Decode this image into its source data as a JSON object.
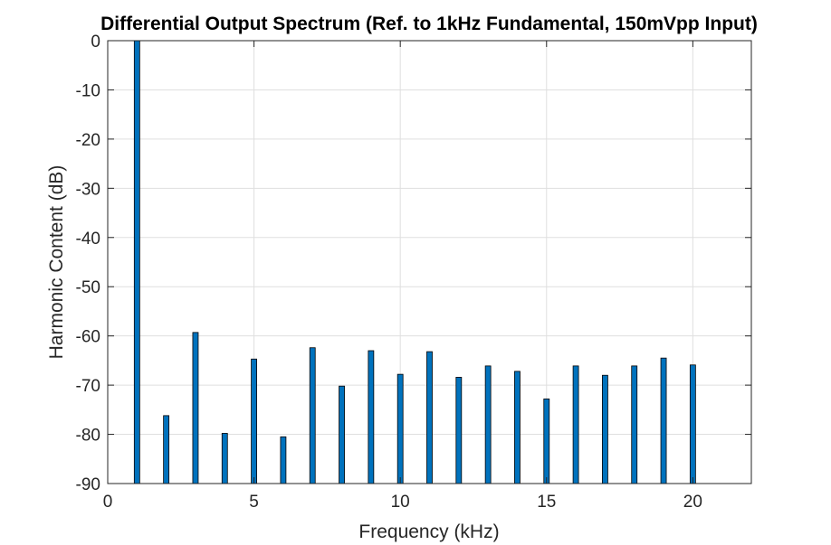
{
  "chart_data": {
    "type": "bar",
    "title": "Differential Output Spectrum (Ref. to 1kHz Fundamental, 150mVpp Input)",
    "xlabel": "Frequency (kHz)",
    "ylabel": "Harmonic Content (dB)",
    "xlim": [
      0,
      22
    ],
    "ylim": [
      -90,
      0
    ],
    "xticks": [
      0,
      5,
      10,
      15,
      20
    ],
    "yticks": [
      0,
      -10,
      -20,
      -30,
      -40,
      -50,
      -60,
      -70,
      -80,
      -90
    ],
    "x": [
      1,
      2,
      3,
      4,
      5,
      6,
      7,
      8,
      9,
      10,
      11,
      12,
      13,
      14,
      15,
      16,
      17,
      18,
      19,
      20
    ],
    "values": [
      0,
      -76.2,
      -59.3,
      -79.8,
      -64.7,
      -80.5,
      -62.4,
      -70.2,
      -63.0,
      -67.8,
      -63.2,
      -68.4,
      -66.1,
      -67.2,
      -72.8,
      -66.1,
      -68.0,
      -66.1,
      -64.5,
      -65.9
    ],
    "bar_color": "#0072bd",
    "grid": true
  }
}
